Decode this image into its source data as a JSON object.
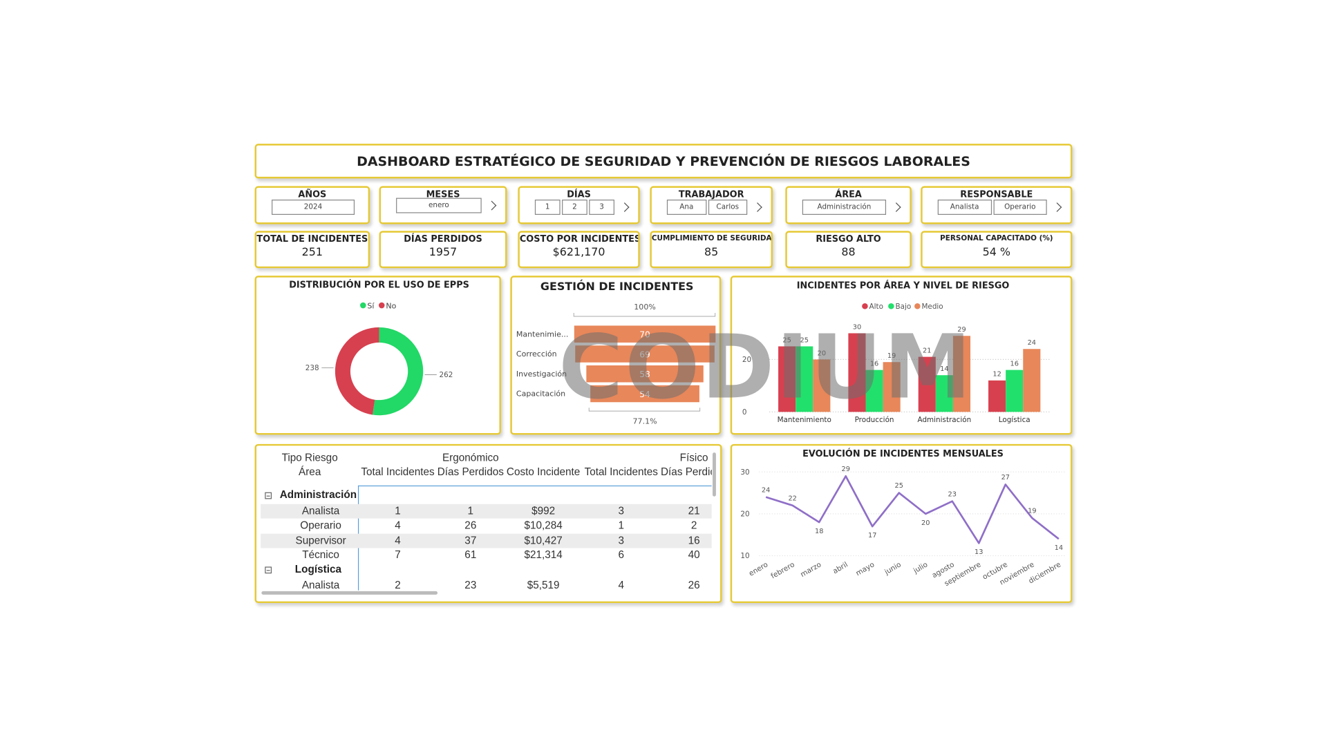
{
  "header": {
    "title": "DASHBOARD ESTRATÉGICO DE SEGURIDAD Y PREVENCIÓN DE RIESGOS LABORALES"
  },
  "filters": [
    {
      "label": "AÑOS",
      "options": [
        "2024"
      ]
    },
    {
      "label": "MESES",
      "options": [
        "enero"
      ]
    },
    {
      "label": "DÍAS",
      "options": [
        "1",
        "2",
        "3"
      ]
    },
    {
      "label": "TRABAJADOR",
      "options": [
        "Ana",
        "Carlos"
      ]
    },
    {
      "label": "ÁREA",
      "options": [
        "Administración"
      ]
    },
    {
      "label": "RESPONSABLE",
      "options": [
        "Analista",
        "Operario"
      ]
    }
  ],
  "kpis": [
    {
      "label": "TOTAL DE INCIDENTES",
      "value": "251"
    },
    {
      "label": "DÍAS PERDIDOS",
      "value": "1957"
    },
    {
      "label": "COSTO POR INCIDENTES",
      "value": "$621,170"
    },
    {
      "label": "CUMPLIMIENTO DE SEGURIDAD",
      "value": "85"
    },
    {
      "label": "RIESGO ALTO",
      "value": "88"
    },
    {
      "label": "PERSONAL CAPACITADO (%)",
      "value": "54 %"
    }
  ],
  "chart_data": [
    {
      "type": "pie",
      "title": "DISTRIBUCIÓN POR EL USO DE EPPS",
      "categories": [
        "Sí",
        "No"
      ],
      "values": [
        262,
        238
      ],
      "colors": [
        "#22d866",
        "#d7404f"
      ],
      "donut": true
    },
    {
      "type": "funnel",
      "title": "GESTIÓN DE INCIDENTES",
      "categories": [
        "Mantenimie...",
        "Corrección",
        "Investigación",
        "Capacitación"
      ],
      "values": [
        70,
        69,
        58,
        54
      ],
      "color": "#e8875a",
      "top_label": "100%",
      "bottom_label": "77.1%"
    },
    {
      "type": "bar",
      "title": "INCIDENTES POR ÁREA Y NIVEL DE RIESGO",
      "categories": [
        "Mantenimiento",
        "Producción",
        "Administración",
        "Logística"
      ],
      "series": [
        {
          "name": "Alto",
          "color": "#d7404f",
          "values": [
            25,
            30,
            21,
            12
          ]
        },
        {
          "name": "Bajo",
          "color": "#22e06c",
          "values": [
            25,
            16,
            14,
            16
          ]
        },
        {
          "name": "Medio",
          "color": "#e8875a",
          "values": [
            20,
            19,
            29,
            24
          ]
        }
      ],
      "ylim": [
        0,
        35
      ],
      "yticks": [
        0,
        20
      ],
      "grid": true
    },
    {
      "type": "line",
      "title": "EVOLUCIÓN DE INCIDENTES MENSUALES",
      "categories": [
        "enero",
        "febrero",
        "marzo",
        "abril",
        "mayo",
        "junio",
        "julio",
        "agosto",
        "septiembre",
        "octubre",
        "noviembre",
        "diciembre"
      ],
      "values": [
        24,
        22,
        18,
        29,
        17,
        25,
        20,
        23,
        13,
        27,
        19,
        14
      ],
      "color": "#8f6fc7",
      "ylim": [
        10,
        30
      ],
      "yticks": [
        10,
        20,
        30
      ],
      "grid": true
    }
  ],
  "table": {
    "header_top": [
      "Tipo Riesgo",
      "Ergonómico",
      "Físico"
    ],
    "header": [
      "Área",
      "Total Incidentes",
      "Días Perdidos",
      "Costo Incidente",
      "Total Incidentes",
      "Días Perdidos"
    ],
    "rows": [
      [
        "Administración"
      ],
      [
        "Analista",
        "1",
        "1",
        "$992",
        "3",
        "21"
      ],
      [
        "Operario",
        "4",
        "26",
        "$10,284",
        "1",
        "2"
      ],
      [
        "Supervisor",
        "4",
        "37",
        "$10,427",
        "3",
        "16"
      ],
      [
        "Técnico",
        "7",
        "61",
        "$21,314",
        "6",
        "40"
      ],
      [
        "Logística"
      ],
      [
        "Analista",
        "2",
        "23",
        "$5,519",
        "4",
        "26"
      ]
    ]
  },
  "watermark": "CODIUM"
}
